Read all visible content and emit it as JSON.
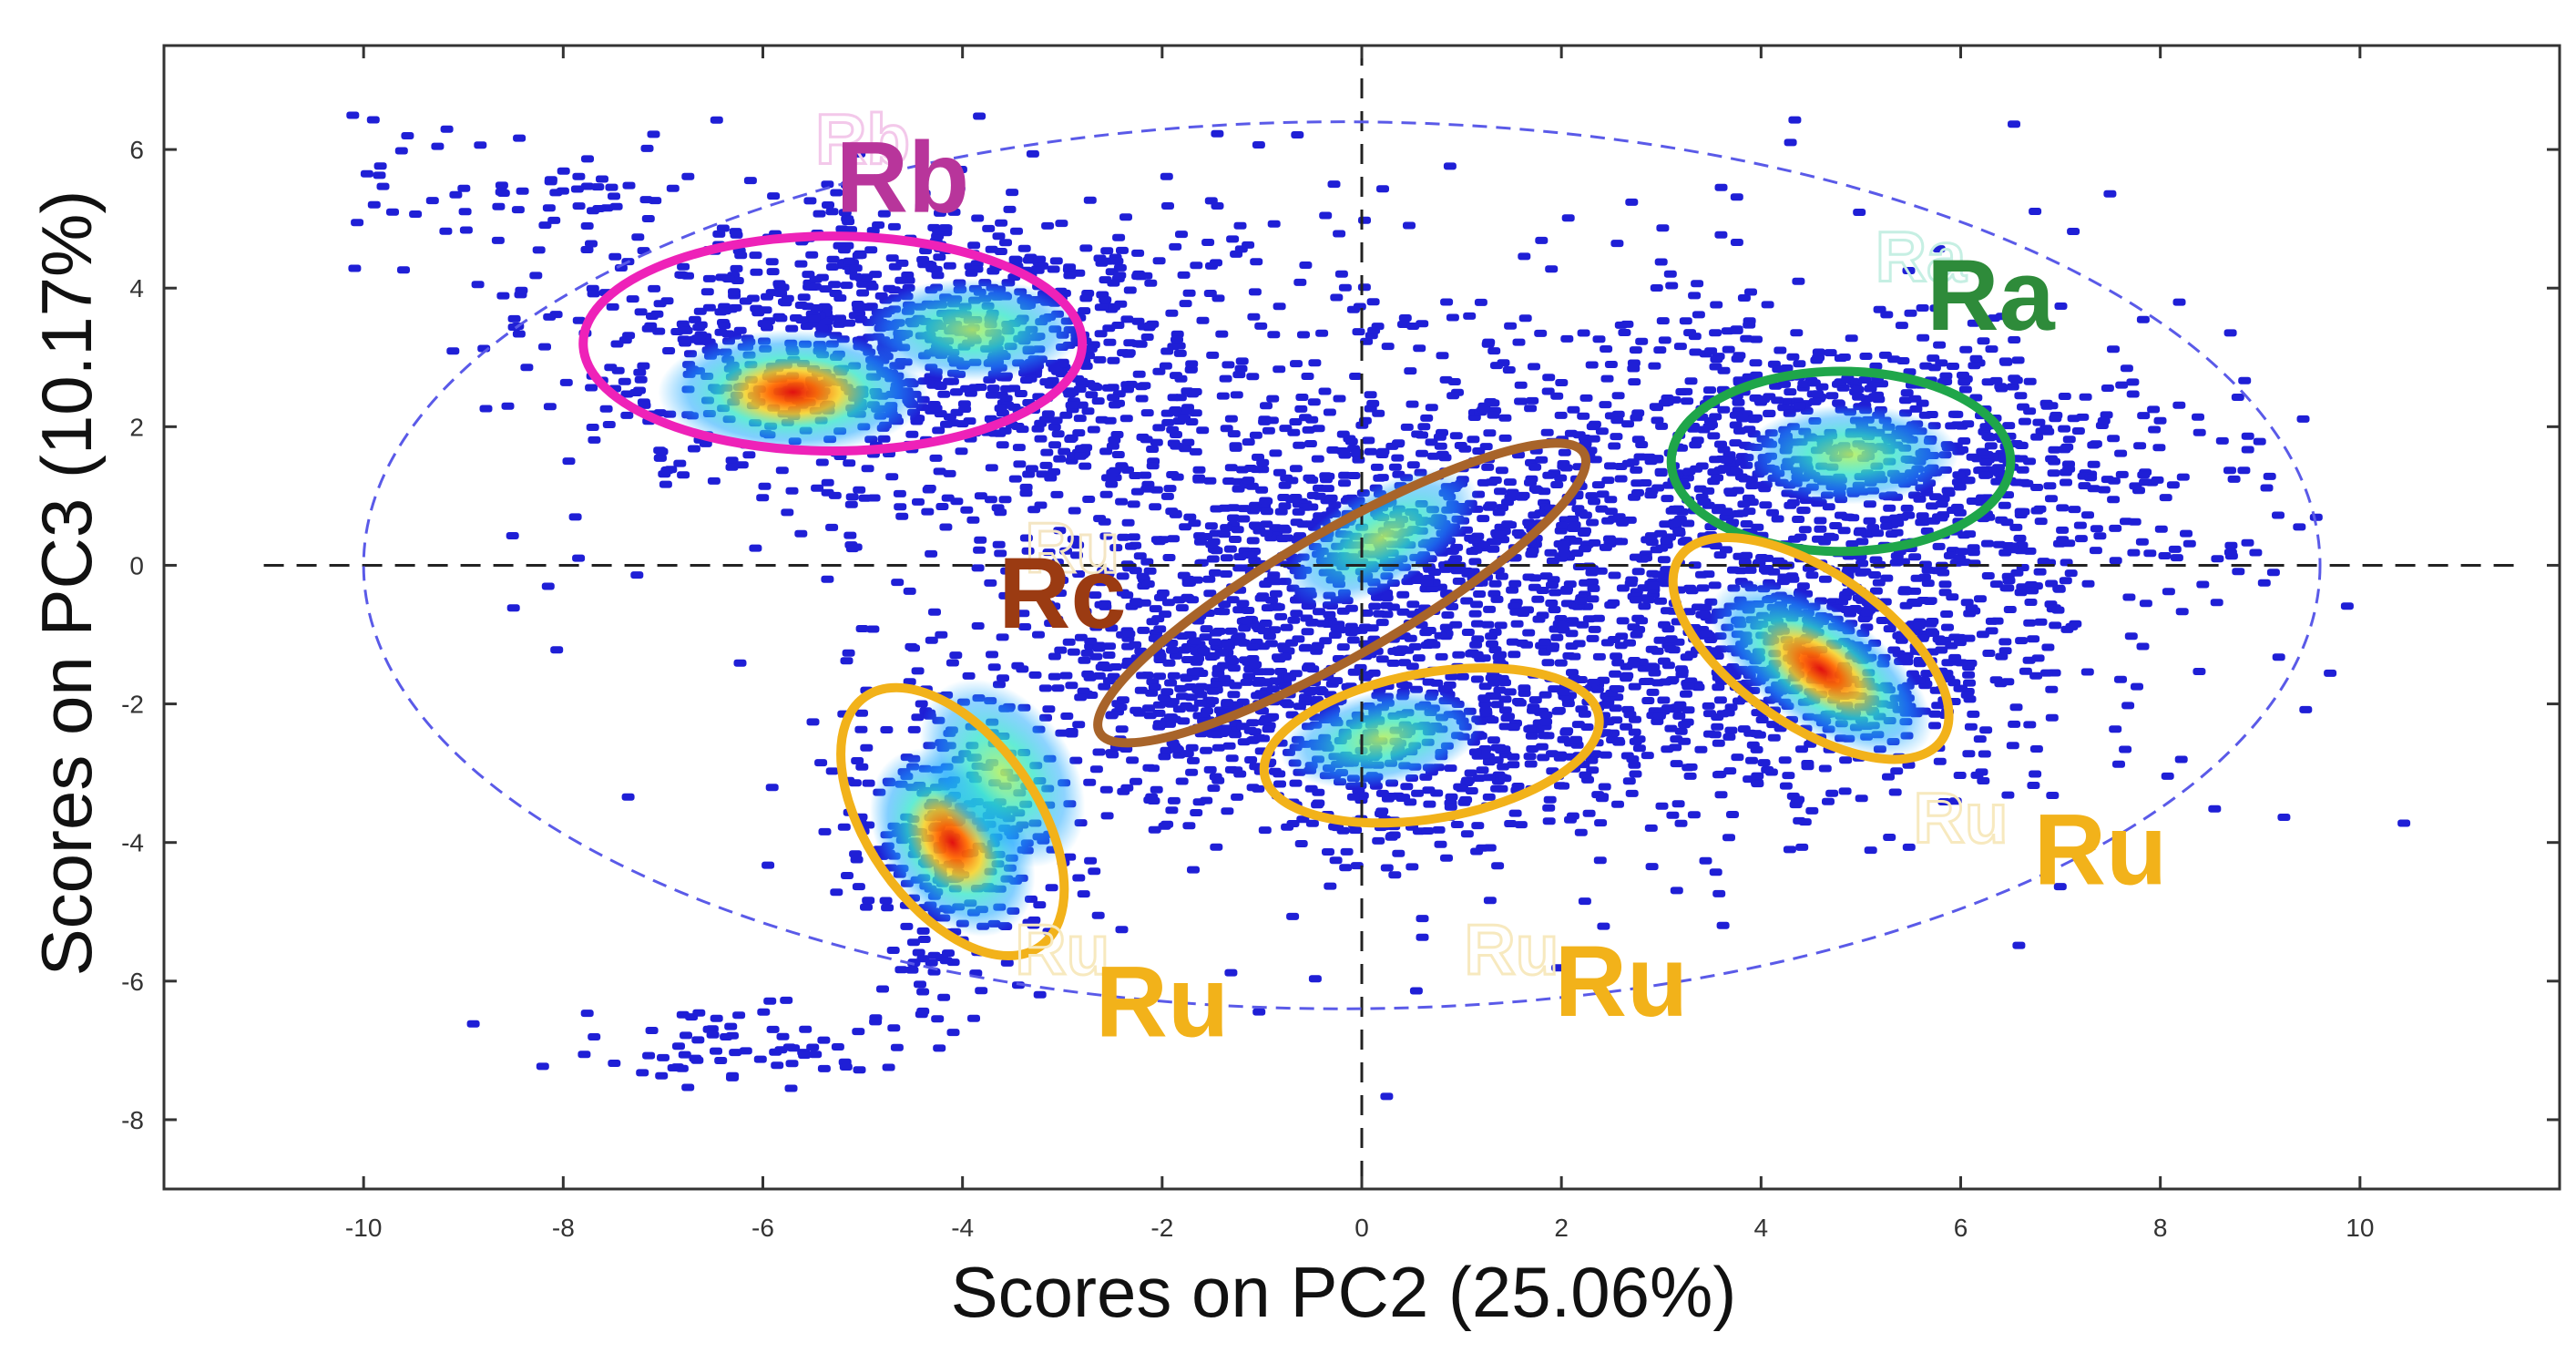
{
  "chart_data": {
    "type": "scatter",
    "title": "",
    "xlabel": "Scores on PC2 (25.06%)",
    "ylabel": "Scores on PC3 (10.17%)",
    "xlim": [
      -12,
      12
    ],
    "ylim": [
      -9,
      7.5
    ],
    "x_ticks": [
      -10,
      -8,
      -6,
      -4,
      -2,
      0,
      2,
      4,
      6,
      8,
      10
    ],
    "y_ticks": [
      -8,
      -6,
      -4,
      -2,
      0,
      2,
      4,
      6
    ],
    "grid": false,
    "point_color": "#1f1fd6",
    "density_colormap": [
      "#1f1fd6",
      "#1aa7ff",
      "#2ee6c8",
      "#b6f060",
      "#f5d020",
      "#ff6a00",
      "#e01010"
    ],
    "reference_lines": [
      {
        "orientation": "vertical",
        "value": 0,
        "style": "dashed",
        "color": "#222222"
      },
      {
        "orientation": "horizontal",
        "value": 0,
        "style": "dashed",
        "color": "#222222"
      }
    ],
    "confidence_ellipse": {
      "cx": -0.2,
      "cy": 0,
      "rx": 9.8,
      "ry": 6.4,
      "color": "#5a5ae8",
      "style": "dashed"
    },
    "clusters": [
      {
        "label": "Rb",
        "color": "#ee22b8",
        "label_color": "#b8359b",
        "cx": -5.3,
        "cy": 3.2,
        "rx": 2.5,
        "ry": 1.55,
        "angle": 0,
        "label_x": -4.6,
        "label_y": 5.1,
        "density": [
          {
            "x": -5.7,
            "y": 2.5,
            "w": 1.0
          },
          {
            "x": -3.9,
            "y": 3.4,
            "w": 0.55
          }
        ]
      },
      {
        "label": "Ra",
        "color": "#1fa64a",
        "label_color": "#2e8b3a",
        "cx": 4.8,
        "cy": 1.5,
        "rx": 1.7,
        "ry": 1.3,
        "angle": 0,
        "label_x": 6.3,
        "label_y": 3.4,
        "density": [
          {
            "x": 4.9,
            "y": 1.6,
            "w": 0.5
          }
        ]
      },
      {
        "label": "Rc",
        "color": "#a8642a",
        "label_color": "#9b3b12",
        "cx": -0.2,
        "cy": -0.4,
        "rx": 2.8,
        "ry": 0.9,
        "angle": 30,
        "label_x": -3.0,
        "label_y": -0.9,
        "density": [
          {
            "x": 0.2,
            "y": 0.4,
            "w": 0.5
          }
        ]
      },
      {
        "label": "Ru",
        "color": "#f2b21a",
        "label_color": "#f2b21a",
        "cx": 4.5,
        "cy": -1.2,
        "rx": 1.6,
        "ry": 1.1,
        "angle": -35,
        "label_x": 7.4,
        "label_y": -4.6,
        "density": [
          {
            "x": 4.6,
            "y": -1.5,
            "w": 0.9
          }
        ]
      },
      {
        "label": "Ru",
        "color": "#f2b21a",
        "label_color": "#f2b21a",
        "cx": 0.7,
        "cy": -2.6,
        "rx": 1.7,
        "ry": 1.05,
        "angle": 10,
        "label_x": 2.6,
        "label_y": -6.5,
        "density": [
          {
            "x": 0.2,
            "y": -2.5,
            "w": 0.4
          }
        ]
      },
      {
        "label": "Ru",
        "color": "#f2b21a",
        "label_color": "#f2b21a",
        "cx": -4.1,
        "cy": -3.7,
        "rx": 0.85,
        "ry": 2.2,
        "angle": 35,
        "label_x": -2.0,
        "label_y": -6.8,
        "density": [
          {
            "x": -4.1,
            "y": -4.0,
            "w": 0.85
          },
          {
            "x": -3.6,
            "y": -3.0,
            "w": 0.5
          }
        ]
      }
    ],
    "ghost_labels": [
      {
        "text": "Rb",
        "x": -5.0,
        "y": 5.8,
        "color": "#f3c8ea"
      },
      {
        "text": "Ra",
        "x": 5.6,
        "y": 4.1,
        "color": "#c6efe3"
      },
      {
        "text": "Ru",
        "x": -2.9,
        "y": -0.1,
        "color": "#f4e6c4"
      },
      {
        "text": "Ru",
        "x": 6.0,
        "y": -4.0,
        "color": "#f7e9bf"
      },
      {
        "text": "Ru",
        "x": 1.5,
        "y": -5.9,
        "color": "#f7e9bf"
      },
      {
        "text": "Ru",
        "x": -3.0,
        "y": -5.9,
        "color": "#f7e9bf"
      }
    ]
  }
}
